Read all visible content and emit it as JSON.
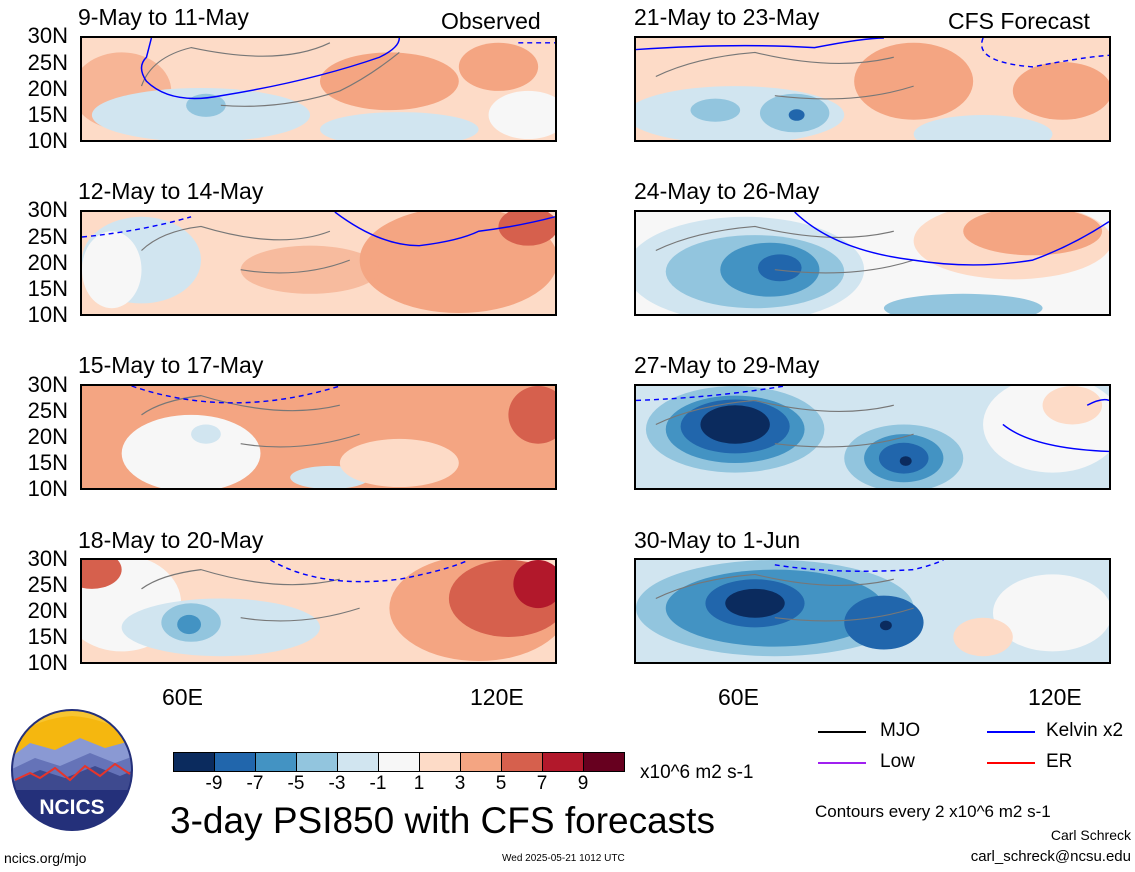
{
  "panels_left": [
    {
      "title": "9-May to 11-May",
      "tag": "Observed"
    },
    {
      "title": "12-May to 14-May",
      "tag": ""
    },
    {
      "title": "15-May to 17-May",
      "tag": ""
    },
    {
      "title": "18-May to 20-May",
      "tag": ""
    }
  ],
  "panels_right": [
    {
      "title": "21-May to 23-May",
      "tag": "CFS Forecast"
    },
    {
      "title": "24-May to 26-May",
      "tag": ""
    },
    {
      "title": "27-May to 29-May",
      "tag": ""
    },
    {
      "title": "30-May to 1-Jun",
      "tag": ""
    }
  ],
  "lat_labels": [
    "30N",
    "25N",
    "20N",
    "15N",
    "10N"
  ],
  "lon_labels": [
    "60E",
    "120E"
  ],
  "colorbar": {
    "labels": [
      "-9",
      "-7",
      "-5",
      "-3",
      "-1",
      "1",
      "3",
      "5",
      "7",
      "9"
    ],
    "colors": [
      "#0b2b5e",
      "#2166ac",
      "#4393c3",
      "#92c5de",
      "#d1e5f0",
      "#f7f7f7",
      "#fddbc7",
      "#f4a582",
      "#d6604d",
      "#b2182b",
      "#67001f"
    ],
    "unit": "x10^6 m2 s-1"
  },
  "legend": {
    "mjo": "MJO",
    "kelvin": "Kelvin x2",
    "low": "Low",
    "er": "ER",
    "colors": {
      "mjo": "#000000",
      "kelvin": "#0000ff",
      "low": "#a020f0",
      "er": "#ff0000"
    }
  },
  "logo": {
    "text": "NCICS"
  },
  "main_title": "3-day PSI850 with CFS forecasts",
  "contours_note": "Contours every 2 x10^6 m2 s-1",
  "author": "Carl Schreck",
  "email": "carl_schreck@ncsu.edu",
  "site": "ncics.org/mjo",
  "timestamp": "Wed 2025-05-21 1012 UTC"
}
